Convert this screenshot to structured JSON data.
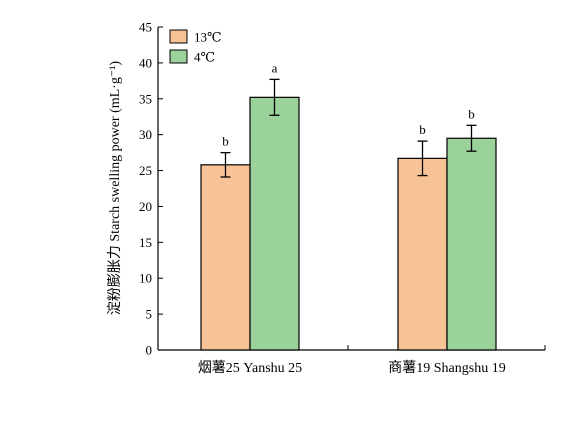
{
  "chart_data": {
    "type": "bar",
    "title": "",
    "xlabel": "",
    "ylabel": "淀粉膨胀力 Starch swelling power (mL·g⁻¹)",
    "ylim": [
      0,
      45
    ],
    "yticks": [
      0,
      5,
      10,
      15,
      20,
      25,
      30,
      35,
      40,
      45
    ],
    "categories": [
      "烟薯25 Yanshu 25",
      "商薯19 Shangshu 19"
    ],
    "series": [
      {
        "name": "13℃",
        "color": "#f7c396",
        "values": [
          25.8,
          26.7
        ],
        "errors": [
          1.7,
          2.4
        ],
        "sig": [
          "b",
          "b"
        ]
      },
      {
        "name": "4℃",
        "color": "#9bd19b",
        "values": [
          35.2,
          29.5
        ],
        "errors": [
          2.5,
          1.8
        ],
        "sig": [
          "a",
          "b"
        ]
      }
    ],
    "legend_position": "top-left",
    "grid": false
  }
}
